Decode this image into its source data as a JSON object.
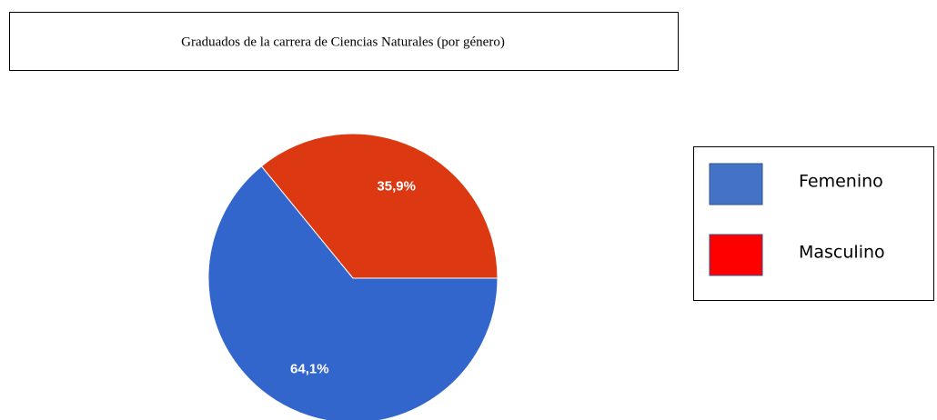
{
  "chart_data": {
    "type": "pie",
    "title": "Graduados de la carrera de Ciencias Naturales (por género)",
    "categories": [
      "Femenino",
      "Masculino"
    ],
    "values": [
      64.1,
      35.9
    ],
    "value_labels": [
      "64,1%",
      "35,9%"
    ],
    "colors": [
      "#3366cc",
      "#dc3912"
    ],
    "legend_colors": [
      "#4472c4",
      "#ff0000"
    ],
    "legend": "right"
  }
}
